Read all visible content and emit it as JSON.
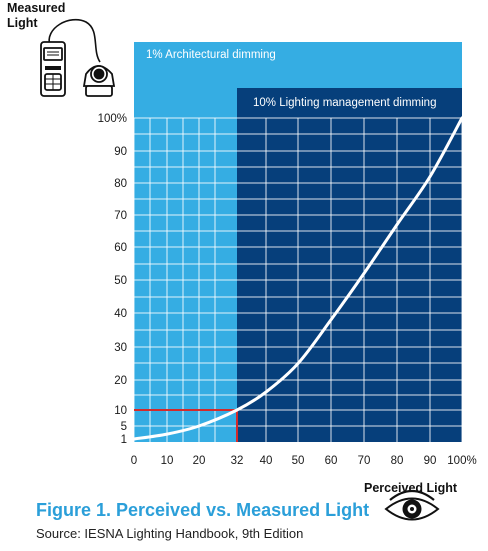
{
  "meter_label": "Measured\nLight",
  "eye_label": "Perceived Light",
  "figure_title": "Figure 1. Perceived vs. Measured Light",
  "figure_source": "Source:  IESNA Lighting Handbook, 9th Edition",
  "colors": {
    "light_band": "#35ade3",
    "dark_band": "#063f7b",
    "curve": "#ffffff",
    "marker": "#d42a2a",
    "title": "#2b9fd9"
  },
  "chart_data": {
    "type": "line",
    "title": "",
    "xlabel": "",
    "ylabel": "",
    "x_ticks": [
      "0",
      "10",
      "20",
      "32",
      "40",
      "50",
      "60",
      "70",
      "80",
      "90",
      "100%"
    ],
    "y_ticks": [
      "1",
      "5",
      "10",
      "20",
      "30",
      "40",
      "50",
      "60",
      "70",
      "80",
      "90",
      "100%"
    ],
    "xlim": [
      0,
      100
    ],
    "ylim": [
      1,
      100
    ],
    "grid": true,
    "bands": [
      {
        "label": "1% Architectural dimming",
        "x_from": 0,
        "x_to": 100
      },
      {
        "label": "10% Lighting management dimming",
        "x_from": 32,
        "x_to": 100
      }
    ],
    "marker": {
      "x": 32,
      "y": 10
    },
    "series": [
      {
        "x": [
          0,
          10,
          20,
          32,
          40,
          50,
          60,
          70,
          80,
          90,
          100
        ],
        "y": [
          1,
          2.5,
          5,
          10,
          16,
          25,
          38,
          52,
          67,
          82,
          100
        ]
      }
    ]
  }
}
